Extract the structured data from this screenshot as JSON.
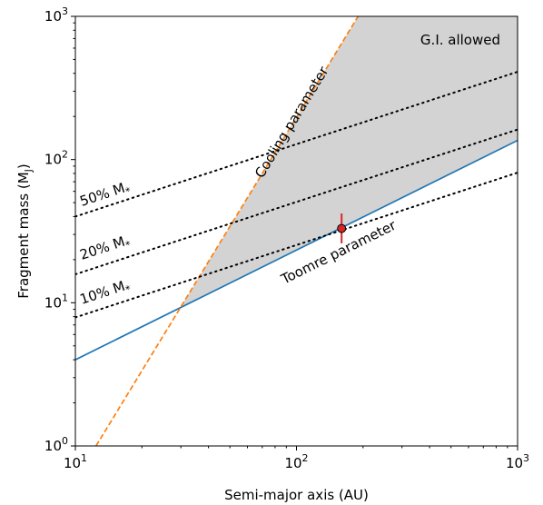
{
  "chart_data": {
    "type": "line",
    "xlabel": "Semi-major axis (AU)",
    "ylabel_main": "Fragment mass (M",
    "ylabel_sub": "J",
    "ylabel_close": ")",
    "x_scale": "log",
    "y_scale": "log",
    "xlim": [
      10,
      1000
    ],
    "ylim": [
      1,
      1000
    ],
    "grid": false,
    "x_ticks": [
      {
        "value": 10,
        "base": "10",
        "exp": "1"
      },
      {
        "value": 100,
        "base": "10",
        "exp": "2"
      },
      {
        "value": 1000,
        "base": "10",
        "exp": "3"
      }
    ],
    "y_ticks": [
      {
        "value": 1,
        "base": "10",
        "exp": "0"
      },
      {
        "value": 10,
        "base": "10",
        "exp": "1"
      },
      {
        "value": 100,
        "base": "10",
        "exp": "2"
      },
      {
        "value": 1000,
        "base": "10",
        "exp": "3"
      }
    ],
    "colors": {
      "toomre": "#1f77b4",
      "cooling": "#ff7f0e",
      "region": "#d3d3d3",
      "point": "#d62728",
      "dotted": "#000000"
    },
    "series": [
      {
        "label_text": "Toomre parameter",
        "style": "solid",
        "color": "#1f77b4",
        "x": [
          10,
          1000
        ],
        "y": [
          4.0,
          136
        ]
      },
      {
        "label_text": "Cooling parameter",
        "style": "dashed",
        "color": "#ff7f0e",
        "x": [
          12.4,
          190
        ],
        "y": [
          1.0,
          1000
        ]
      },
      {
        "label_text": "50% M",
        "label_sub": "*",
        "style": "dotted",
        "color": "#000000",
        "x": [
          10,
          1000
        ],
        "y": [
          40,
          410
        ]
      },
      {
        "label_text": "20% M",
        "label_sub": "*",
        "style": "dotted",
        "color": "#000000",
        "x": [
          10,
          1000
        ],
        "y": [
          15.8,
          162
        ]
      },
      {
        "label_text": "10% M",
        "label_sub": "*",
        "style": "dotted",
        "color": "#000000",
        "x": [
          10,
          1000
        ],
        "y": [
          7.9,
          81
        ]
      }
    ],
    "region": {
      "label": "G.I. allowed"
    },
    "points": [
      {
        "x": 160,
        "y": 33,
        "y_err_low": 26,
        "y_err_high": 42
      }
    ]
  }
}
